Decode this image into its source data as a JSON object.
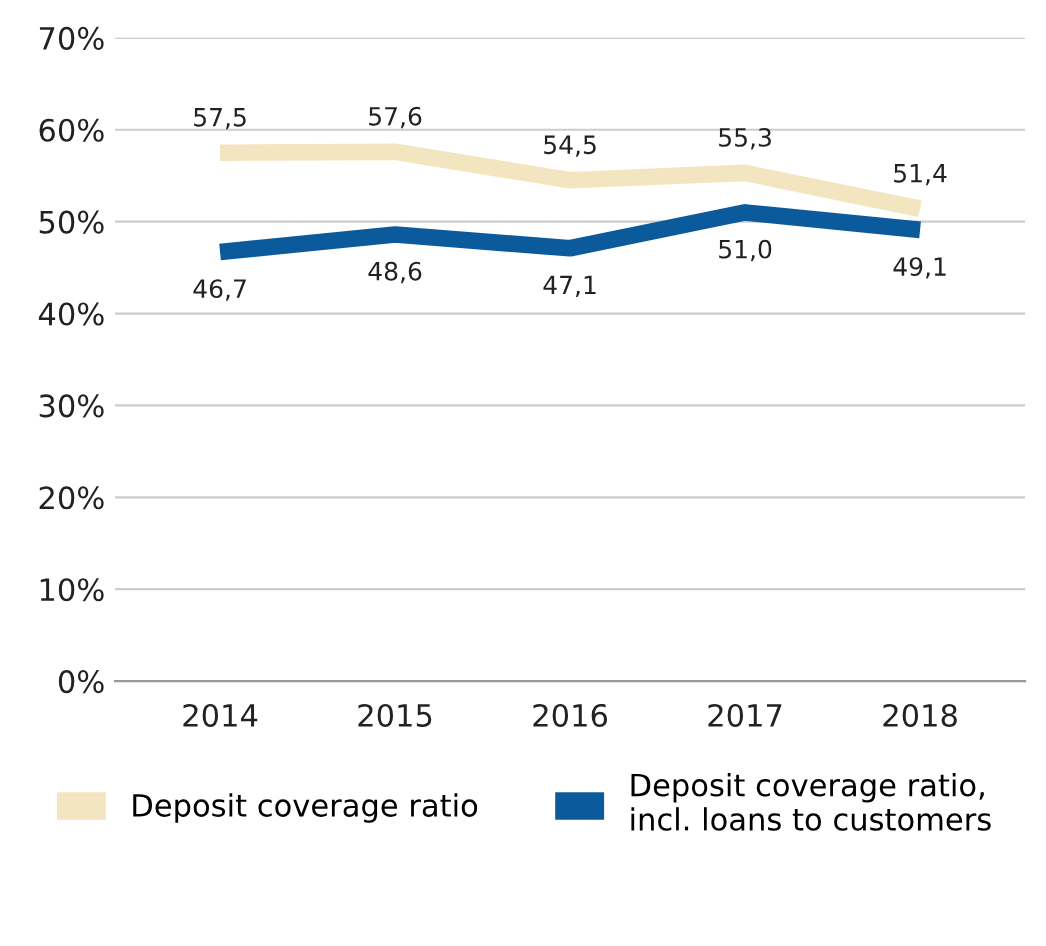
{
  "chart_data": {
    "type": "line",
    "categories": [
      "2014",
      "2015",
      "2016",
      "2017",
      "2018"
    ],
    "series": [
      {
        "name": "Deposit coverage ratio",
        "color": "#f3e5bf",
        "values": [
          57.5,
          57.6,
          54.5,
          55.3,
          51.4
        ],
        "value_labels": [
          "57,5",
          "57,6",
          "54,5",
          "55,3",
          "51,4"
        ]
      },
      {
        "name": "Deposit coverage ratio, incl. loans to customers",
        "color": "#0b5a9c",
        "values": [
          46.7,
          48.6,
          47.1,
          51.0,
          49.1
        ],
        "value_labels": [
          "46,7",
          "48,6",
          "47,1",
          "51,0",
          "49,1"
        ]
      }
    ],
    "ylim": [
      0,
      70
    ],
    "yticks": [
      {
        "value": 0,
        "label": "0%"
      },
      {
        "value": 10,
        "label": "10%"
      },
      {
        "value": 20,
        "label": "20%"
      },
      {
        "value": 30,
        "label": "30%"
      },
      {
        "value": 40,
        "label": "40%"
      },
      {
        "value": 50,
        "label": "50%"
      },
      {
        "value": 60,
        "label": "60%"
      },
      {
        "value": 70,
        "label": "70%"
      }
    ],
    "grid": "y",
    "legend": "bottom",
    "marker": "none",
    "line_style": "solid"
  }
}
